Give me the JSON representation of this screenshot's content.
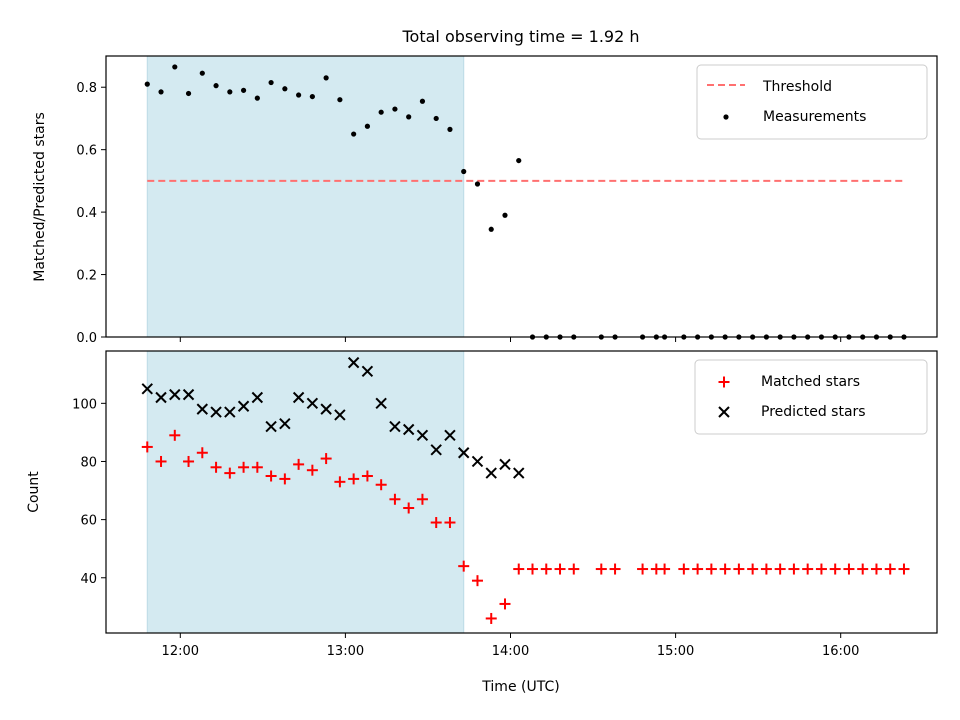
{
  "chart_data": {
    "type": "scatter",
    "title": "Total observing time = 1.92 h",
    "xlabel": "Time (UTC)",
    "x_ticks": [
      "12:00",
      "13:00",
      "14:00",
      "15:00",
      "16:00"
    ],
    "xlim": [
      "11:33",
      "16:35"
    ],
    "shaded_interval": {
      "start": "11:48",
      "end": "13:43",
      "color": "#d4eaf1"
    },
    "panels": [
      {
        "name": "ratio",
        "ylabel": "Matched/Predicted stars",
        "ylim": [
          0,
          0.9
        ],
        "y_ticks": [
          0.0,
          0.2,
          0.4,
          0.6,
          0.8
        ],
        "legend": "top-right",
        "threshold": {
          "name": "Threshold",
          "value": 0.5,
          "color": "#ff7070",
          "style": "dashed",
          "x_start": "11:48",
          "x_end": "16:23"
        },
        "series": [
          {
            "name": "Measurements",
            "marker": "dot",
            "color": "#000000",
            "points": [
              [
                "11:48",
                0.81
              ],
              [
                "11:53",
                0.785
              ],
              [
                "11:58",
                0.865
              ],
              [
                "12:03",
                0.78
              ],
              [
                "12:08",
                0.845
              ],
              [
                "12:13",
                0.805
              ],
              [
                "12:18",
                0.785
              ],
              [
                "12:23",
                0.79
              ],
              [
                "12:28",
                0.765
              ],
              [
                "12:33",
                0.815
              ],
              [
                "12:38",
                0.795
              ],
              [
                "12:43",
                0.775
              ],
              [
                "12:48",
                0.77
              ],
              [
                "12:53",
                0.83
              ],
              [
                "12:58",
                0.76
              ],
              [
                "13:03",
                0.65
              ],
              [
                "13:08",
                0.675
              ],
              [
                "13:13",
                0.72
              ],
              [
                "13:18",
                0.73
              ],
              [
                "13:23",
                0.705
              ],
              [
                "13:28",
                0.755
              ],
              [
                "13:33",
                0.7
              ],
              [
                "13:38",
                0.665
              ],
              [
                "13:43",
                0.53
              ],
              [
                "13:48",
                0.49
              ],
              [
                "13:53",
                0.345
              ],
              [
                "13:58",
                0.39
              ],
              [
                "14:03",
                0.565
              ],
              [
                "14:08",
                0
              ],
              [
                "14:13",
                0
              ],
              [
                "14:18",
                0
              ],
              [
                "14:23",
                0
              ],
              [
                "14:33",
                0
              ],
              [
                "14:38",
                0
              ],
              [
                "14:48",
                0
              ],
              [
                "14:53",
                0
              ],
              [
                "14:56",
                0
              ],
              [
                "15:03",
                0
              ],
              [
                "15:08",
                0
              ],
              [
                "15:13",
                0
              ],
              [
                "15:18",
                0
              ],
              [
                "15:23",
                0
              ],
              [
                "15:28",
                0
              ],
              [
                "15:33",
                0
              ],
              [
                "15:38",
                0
              ],
              [
                "15:43",
                0
              ],
              [
                "15:48",
                0
              ],
              [
                "15:53",
                0
              ],
              [
                "15:58",
                0
              ],
              [
                "16:03",
                0
              ],
              [
                "16:08",
                0
              ],
              [
                "16:13",
                0
              ],
              [
                "16:18",
                0
              ],
              [
                "16:23",
                0
              ]
            ]
          }
        ]
      },
      {
        "name": "count",
        "ylabel": "Count",
        "ylim": [
          21,
          118
        ],
        "y_ticks": [
          40,
          60,
          80,
          100
        ],
        "legend": "top-right",
        "series": [
          {
            "name": "Matched stars",
            "marker": "plus",
            "color": "#ff0000",
            "points": [
              [
                "11:48",
                85
              ],
              [
                "11:53",
                80
              ],
              [
                "11:58",
                89
              ],
              [
                "12:03",
                80
              ],
              [
                "12:08",
                83
              ],
              [
                "12:13",
                78
              ],
              [
                "12:18",
                76
              ],
              [
                "12:23",
                78
              ],
              [
                "12:28",
                78
              ],
              [
                "12:33",
                75
              ],
              [
                "12:38",
                74
              ],
              [
                "12:43",
                79
              ],
              [
                "12:48",
                77
              ],
              [
                "12:53",
                81
              ],
              [
                "12:58",
                73
              ],
              [
                "13:03",
                74
              ],
              [
                "13:08",
                75
              ],
              [
                "13:13",
                72
              ],
              [
                "13:18",
                67
              ],
              [
                "13:23",
                64
              ],
              [
                "13:28",
                67
              ],
              [
                "13:33",
                59
              ],
              [
                "13:38",
                59
              ],
              [
                "13:43",
                44
              ],
              [
                "13:48",
                39
              ],
              [
                "13:53",
                26
              ],
              [
                "13:58",
                31
              ],
              [
                "14:03",
                43
              ],
              [
                "14:08",
                43
              ],
              [
                "14:13",
                43
              ],
              [
                "14:18",
                43
              ],
              [
                "14:23",
                43
              ],
              [
                "14:33",
                43
              ],
              [
                "14:38",
                43
              ],
              [
                "14:48",
                43
              ],
              [
                "14:53",
                43
              ],
              [
                "14:56",
                43
              ],
              [
                "15:03",
                43
              ],
              [
                "15:08",
                43
              ],
              [
                "15:13",
                43
              ],
              [
                "15:18",
                43
              ],
              [
                "15:23",
                43
              ],
              [
                "15:28",
                43
              ],
              [
                "15:33",
                43
              ],
              [
                "15:38",
                43
              ],
              [
                "15:43",
                43
              ],
              [
                "15:48",
                43
              ],
              [
                "15:53",
                43
              ],
              [
                "15:58",
                43
              ],
              [
                "16:03",
                43
              ],
              [
                "16:08",
                43
              ],
              [
                "16:13",
                43
              ],
              [
                "16:18",
                43
              ],
              [
                "16:23",
                43
              ]
            ]
          },
          {
            "name": "Predicted stars",
            "marker": "x",
            "color": "#000000",
            "points": [
              [
                "11:48",
                105
              ],
              [
                "11:53",
                102
              ],
              [
                "11:58",
                103
              ],
              [
                "12:03",
                103
              ],
              [
                "12:08",
                98
              ],
              [
                "12:13",
                97
              ],
              [
                "12:18",
                97
              ],
              [
                "12:23",
                99
              ],
              [
                "12:28",
                102
              ],
              [
                "12:33",
                92
              ],
              [
                "12:38",
                93
              ],
              [
                "12:43",
                102
              ],
              [
                "12:48",
                100
              ],
              [
                "12:53",
                98
              ],
              [
                "12:58",
                96
              ],
              [
                "13:03",
                114
              ],
              [
                "13:08",
                111
              ],
              [
                "13:13",
                100
              ],
              [
                "13:18",
                92
              ],
              [
                "13:23",
                91
              ],
              [
                "13:28",
                89
              ],
              [
                "13:33",
                84
              ],
              [
                "13:38",
                89
              ],
              [
                "13:43",
                83
              ],
              [
                "13:48",
                80
              ],
              [
                "13:53",
                76
              ],
              [
                "13:58",
                79
              ],
              [
                "14:03",
                76
              ]
            ]
          }
        ]
      }
    ]
  }
}
